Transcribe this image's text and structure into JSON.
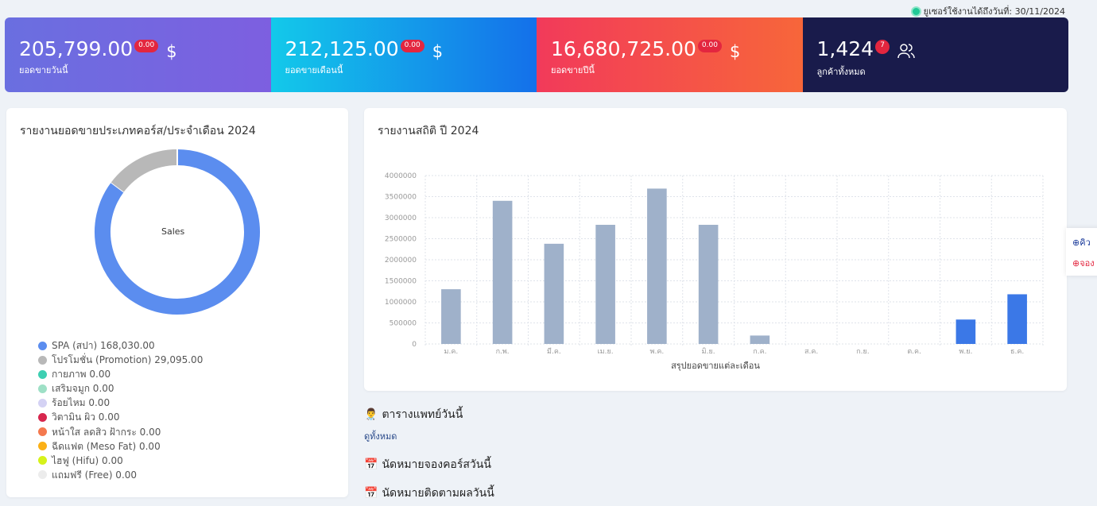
{
  "header": {
    "license_note": "ยูเซอร์ใช้งานได้ถึงวันที่: 30/11/2024"
  },
  "cards": [
    {
      "value": "205,799.00",
      "badge": "0.00",
      "unit": "$",
      "label": "ยอดขายวันนี้"
    },
    {
      "value": "212,125.00",
      "badge": "0.00",
      "unit": "$",
      "label": "ยอดขายเดือนนี้"
    },
    {
      "value": "16,680,725.00",
      "badge": "0.00",
      "unit": "$",
      "label": "ยอดขายปีนี้"
    },
    {
      "value": "1,424",
      "badge": "7",
      "label": "ลูกค้าทั้งหมด"
    }
  ],
  "course_panel": {
    "title": "รายงานยอดขายประเภทคอร์ส/ประจำเดือน 2024",
    "center": "Sales",
    "legend": [
      {
        "label": "SPA (สปา) 168,030.00",
        "color": "#5b8def",
        "value": 168030
      },
      {
        "label": "โปรโมชั่น (Promotion) 29,095.00",
        "color": "#b8b8b8",
        "value": 29095
      },
      {
        "label": "กายภาพ 0.00",
        "color": "#3ecfb2",
        "value": 0
      },
      {
        "label": "เสริมจมูก 0.00",
        "color": "#9ee0c6",
        "value": 0
      },
      {
        "label": "ร้อยไหม 0.00",
        "color": "#d4d2f4",
        "value": 0
      },
      {
        "label": "วิตามิน ผิว 0.00",
        "color": "#d7264e",
        "value": 0
      },
      {
        "label": "หน้าใส ลดสิว ฝ้ากระ 0.00",
        "color": "#f4794e",
        "value": 0
      },
      {
        "label": "ฉีดแฟต (Meso Fat) 0.00",
        "color": "#fbb016",
        "value": 0
      },
      {
        "label": "ไฮฟู (Hifu) 0.00",
        "color": "#d6f21a",
        "value": 0
      },
      {
        "label": "แถมฟรี (Free) 0.00",
        "color": "#ececec",
        "value": 0
      }
    ]
  },
  "chart_data": {
    "type": "bar",
    "title": "รายงานสถิติ ปี 2024",
    "xlabel": "สรุปยอดขายแต่ละเดือน",
    "ylabel": "",
    "categories": [
      "ม.ค.",
      "ก.พ.",
      "มี.ค.",
      "เม.ย.",
      "พ.ค.",
      "มิ.ย.",
      "ก.ค.",
      "ส.ค.",
      "ก.ย.",
      "ต.ค.",
      "พ.ย.",
      "ธ.ค."
    ],
    "values": [
      1300000,
      3400000,
      2380000,
      2830000,
      3690000,
      2830000,
      200000,
      0,
      0,
      0,
      580000,
      1180000
    ],
    "colors": [
      "#9fb1ca",
      "#9fb1ca",
      "#9fb1ca",
      "#9fb1ca",
      "#9fb1ca",
      "#9fb1ca",
      "#9fb1ca",
      "#9fb1ca",
      "#9fb1ca",
      "#9fb1ca",
      "#3b78e7",
      "#3b78e7"
    ],
    "yticks": [
      "0",
      "500000",
      "1000000",
      "1500000",
      "2000000",
      "2500000",
      "3000000",
      "3500000",
      "4000000"
    ],
    "ylim": [
      0,
      4000000
    ],
    "grid": true
  },
  "sections": {
    "doctor": "ตารางแพทย์วันนี้",
    "view_all": "ดูทั้งหมด",
    "course_appt": "นัดหมายจองคอร์สวันนี้",
    "followup_appt": "นัดหมายติดตามผลวันนี้"
  },
  "side": {
    "queue": "คิว",
    "booking": "จอง"
  }
}
